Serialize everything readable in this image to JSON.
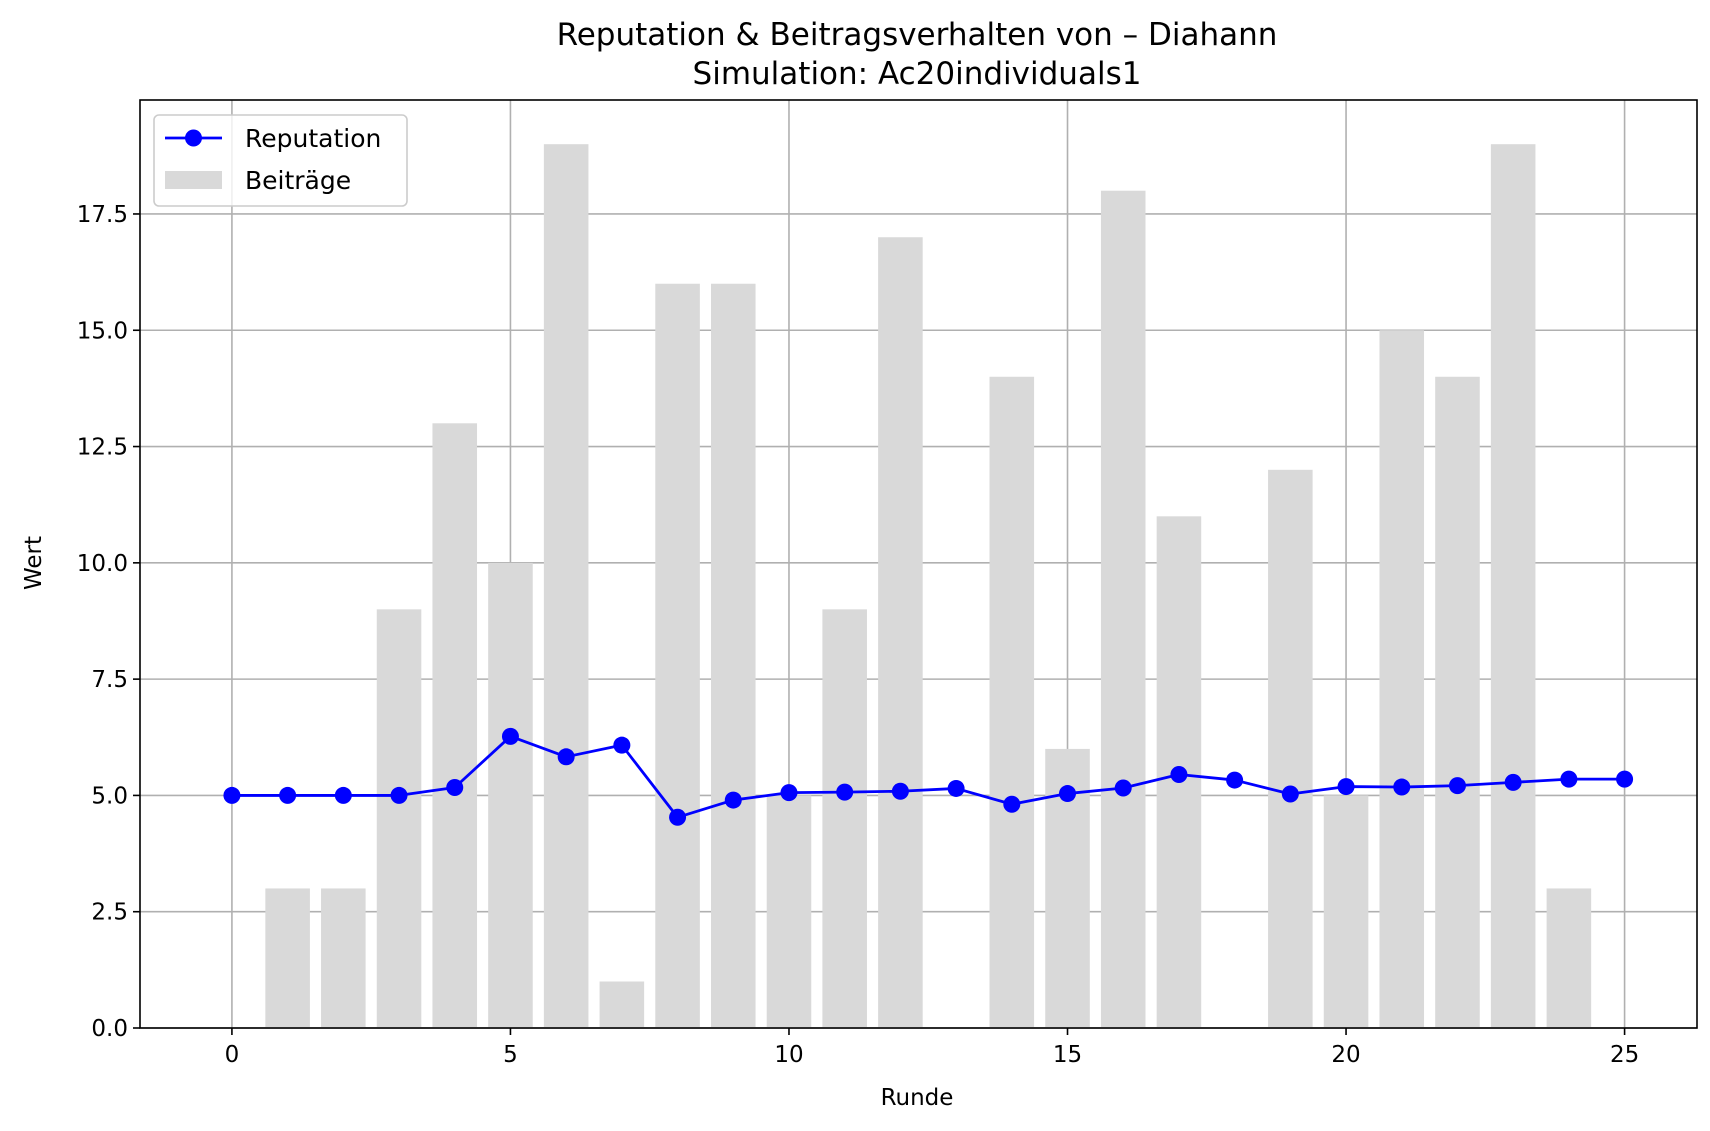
{
  "chart_data": {
    "type": "bar+line",
    "title": "Reputation & Beitragsverhalten von – Diahann",
    "subtitle": "Simulation: Ac20individuals1",
    "xlabel": "Runde",
    "ylabel": "Wert",
    "xlim": [
      -1.65,
      26.3
    ],
    "ylim": [
      0,
      19.95
    ],
    "xticks": [
      0,
      5,
      10,
      15,
      20,
      25
    ],
    "xtick_labels": [
      "0",
      "5",
      "10",
      "15",
      "20",
      "25"
    ],
    "yticks": [
      0,
      2.5,
      5,
      7.5,
      10,
      12.5,
      15,
      17.5
    ],
    "ytick_labels": [
      "0.0",
      "2.5",
      "5.0",
      "7.5",
      "10.0",
      "12.5",
      "15.0",
      "17.5"
    ],
    "grid": true,
    "legend_position": "top-left",
    "x": [
      0,
      1,
      2,
      3,
      4,
      5,
      6,
      7,
      8,
      9,
      10,
      11,
      12,
      13,
      14,
      15,
      16,
      17,
      18,
      19,
      20,
      21,
      22,
      23,
      24,
      25
    ],
    "series": [
      {
        "name": "Reputation",
        "type": "line",
        "color": "#0000ff",
        "marker": "circle",
        "values": [
          5.0,
          5.0,
          5.0,
          5.0,
          5.17,
          6.27,
          5.83,
          6.08,
          4.53,
          4.9,
          5.06,
          5.07,
          5.09,
          5.15,
          4.81,
          5.04,
          5.16,
          5.45,
          5.33,
          5.03,
          5.19,
          5.18,
          5.21,
          5.28,
          5.35,
          5.35
        ]
      },
      {
        "name": "Beiträge",
        "type": "bar",
        "color": "#d9d9d9",
        "values": [
          0,
          3,
          3,
          9,
          13,
          10,
          19,
          1,
          16,
          16,
          5,
          9,
          17,
          0,
          14,
          6,
          18,
          11,
          0,
          12,
          5,
          15,
          14,
          19,
          3,
          0
        ]
      }
    ]
  }
}
